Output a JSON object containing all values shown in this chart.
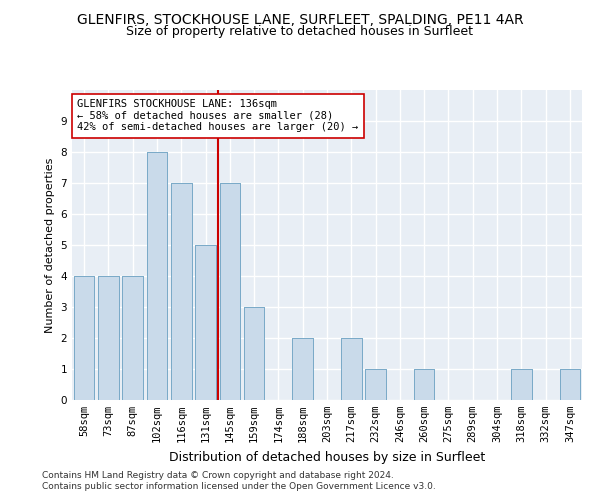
{
  "title": "GLENFIRS, STOCKHOUSE LANE, SURFLEET, SPALDING, PE11 4AR",
  "subtitle": "Size of property relative to detached houses in Surfleet",
  "xlabel": "Distribution of detached houses by size in Surfleet",
  "ylabel": "Number of detached properties",
  "categories": [
    "58sqm",
    "73sqm",
    "87sqm",
    "102sqm",
    "116sqm",
    "131sqm",
    "145sqm",
    "159sqm",
    "174sqm",
    "188sqm",
    "203sqm",
    "217sqm",
    "232sqm",
    "246sqm",
    "260sqm",
    "275sqm",
    "289sqm",
    "304sqm",
    "318sqm",
    "332sqm",
    "347sqm"
  ],
  "values": [
    4,
    4,
    4,
    8,
    7,
    5,
    7,
    3,
    0,
    2,
    0,
    2,
    1,
    0,
    1,
    0,
    0,
    0,
    1,
    0,
    1
  ],
  "bar_color": "#c9daea",
  "bar_edgecolor": "#7aaac8",
  "vline_x": 5.5,
  "vline_color": "#cc0000",
  "annotation_text": "GLENFIRS STOCKHOUSE LANE: 136sqm\n← 58% of detached houses are smaller (28)\n42% of semi-detached houses are larger (20) →",
  "annotation_box_color": "#ffffff",
  "annotation_box_edgecolor": "#cc0000",
  "ylim": [
    0,
    10
  ],
  "yticks": [
    0,
    1,
    2,
    3,
    4,
    5,
    6,
    7,
    8,
    9,
    10
  ],
  "bg_color": "#e8eef5",
  "grid_color": "#d0d8e4",
  "footer1": "Contains HM Land Registry data © Crown copyright and database right 2024.",
  "footer2": "Contains public sector information licensed under the Open Government Licence v3.0.",
  "title_fontsize": 10,
  "subtitle_fontsize": 9,
  "xlabel_fontsize": 9,
  "ylabel_fontsize": 8,
  "tick_fontsize": 7.5,
  "annotation_fontsize": 7.5,
  "footer_fontsize": 6.5
}
